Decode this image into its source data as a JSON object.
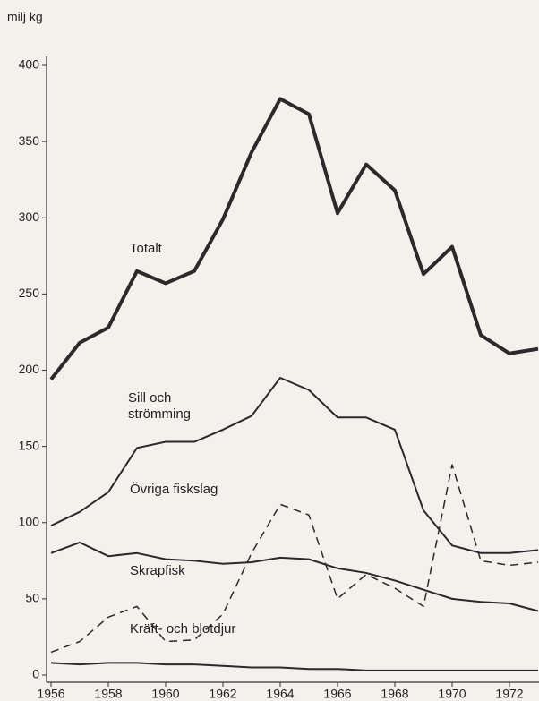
{
  "chart_data": {
    "type": "line",
    "y_label": "milj kg",
    "x": [
      1956,
      1957,
      1958,
      1959,
      1960,
      1961,
      1962,
      1963,
      1964,
      1965,
      1966,
      1967,
      1968,
      1969,
      1970,
      1971,
      1972,
      1973
    ],
    "xlim": [
      1956,
      1973
    ],
    "xticks": [
      1956,
      1958,
      1960,
      1962,
      1964,
      1966,
      1968,
      1970,
      1972
    ],
    "ylim": [
      0,
      400
    ],
    "yticks": [
      0,
      50,
      100,
      150,
      200,
      250,
      300,
      350,
      400
    ],
    "series": [
      {
        "name": "Totalt",
        "color": "#2a2a2a",
        "dash": false,
        "width": 4,
        "values": [
          194,
          218,
          228,
          265,
          257,
          265,
          299,
          343,
          378,
          368,
          303,
          335,
          318,
          263,
          281,
          223,
          211,
          214
        ]
      },
      {
        "name": "Sill och strömming",
        "color": "#2a2a2a",
        "dash": false,
        "width": 2,
        "values": [
          98,
          107,
          120,
          149,
          153,
          153,
          161,
          170,
          195,
          187,
          169,
          169,
          161,
          108,
          85,
          80,
          80,
          82
        ]
      },
      {
        "name": "Övriga fiskslag",
        "color": "#2a2a2a",
        "dash": false,
        "width": 2,
        "values": [
          80,
          87,
          78,
          80,
          76,
          75,
          73,
          74,
          77,
          76,
          70,
          67,
          62,
          56,
          50,
          48,
          47,
          42
        ]
      },
      {
        "name": "Skrapfisk",
        "color": "#2a2a2a",
        "dash": true,
        "width": 1.5,
        "values": [
          15,
          22,
          38,
          45,
          22,
          23,
          40,
          80,
          112,
          105,
          50,
          66,
          57,
          45,
          138,
          75,
          72,
          74
        ]
      },
      {
        "name": "Kräft- och blotdjur",
        "color": "#2a2a2a",
        "dash": false,
        "width": 2,
        "values": [
          8,
          7,
          8,
          8,
          7,
          7,
          6,
          5,
          5,
          4,
          4,
          3,
          3,
          3,
          3,
          3,
          3,
          3
        ]
      }
    ]
  }
}
